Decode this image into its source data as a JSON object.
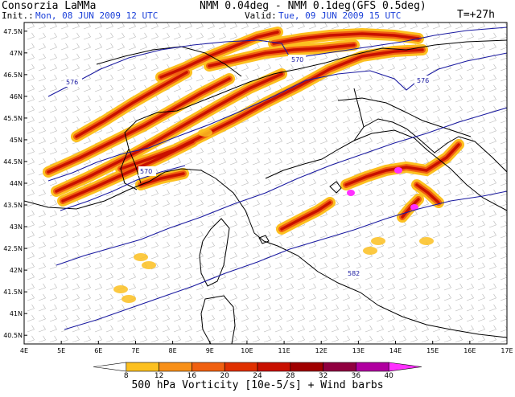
{
  "header": {
    "producer": "Consorzia LaMMa",
    "model": "NMM 0.04deg - NMM 0.1deg(GFS 0.5deg)",
    "init_label": "Init.:",
    "init_value": "Mon, 08 JUN 2009  12 UTC",
    "valid_label": "Valid:",
    "valid_value": "Tue, 09 JUN 2009  15 UTC",
    "lead": "T=+27h"
  },
  "map": {
    "lat_labels": [
      "47.5N",
      "47N",
      "46.5N",
      "46N",
      "45.5N",
      "45N",
      "44.5N",
      "44N",
      "43.5N",
      "43N",
      "42.5N",
      "42N",
      "41.5N",
      "41N",
      "40.5N"
    ],
    "lon_labels": [
      "4E",
      "5E",
      "6E",
      "7E",
      "8E",
      "9E",
      "10E",
      "11E",
      "12E",
      "13E",
      "14E",
      "15E",
      "16E",
      "17E"
    ],
    "lat_values": [
      47.5,
      47,
      46.5,
      46,
      45.5,
      45,
      44.5,
      44,
      43.5,
      43,
      42.5,
      42,
      41.5,
      41,
      40.5
    ],
    "lon_values": [
      4,
      5,
      6,
      7,
      8,
      9,
      10,
      11,
      12,
      13,
      14,
      15,
      16,
      17
    ],
    "contour_labels": [
      "570",
      "576",
      "576",
      "570",
      "582"
    ],
    "contour_color": "#1a1aa0",
    "coast_color": "#000000"
  },
  "colorbar": {
    "levels": [
      "8",
      "12",
      "16",
      "20",
      "24",
      "28",
      "32",
      "36",
      "40"
    ],
    "colors": [
      "#ffffff",
      "#fcc020",
      "#f89018",
      "#f06010",
      "#e03000",
      "#c81000",
      "#a00000",
      "#900040",
      "#b000a0",
      "#ff30ff"
    ],
    "caption": "500 hPa Vorticity [10e-5/s] + Wind barbs"
  }
}
